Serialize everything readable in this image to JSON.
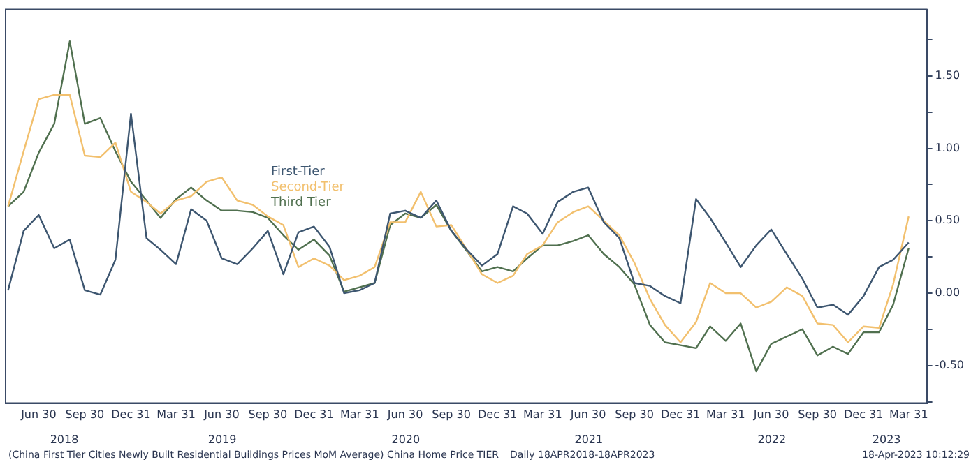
{
  "chart_data": {
    "type": "line",
    "x": [
      "2018-04-30",
      "2018-05-31",
      "2018-06-30",
      "2018-07-31",
      "2018-08-31",
      "2018-09-30",
      "2018-10-31",
      "2018-11-30",
      "2018-12-31",
      "2019-01-31",
      "2019-02-28",
      "2019-03-31",
      "2019-04-30",
      "2019-05-31",
      "2019-06-30",
      "2019-07-31",
      "2019-08-31",
      "2019-09-30",
      "2019-10-31",
      "2019-11-30",
      "2019-12-31",
      "2020-01-31",
      "2020-02-29",
      "2020-03-31",
      "2020-04-30",
      "2020-05-31",
      "2020-06-30",
      "2020-07-31",
      "2020-08-31",
      "2020-09-30",
      "2020-10-31",
      "2020-11-30",
      "2020-12-31",
      "2021-01-31",
      "2021-02-28",
      "2021-03-31",
      "2021-04-30",
      "2021-05-31",
      "2021-06-30",
      "2021-07-31",
      "2021-08-31",
      "2021-09-30",
      "2021-10-31",
      "2021-11-30",
      "2021-12-31",
      "2022-01-31",
      "2022-02-28",
      "2022-03-31",
      "2022-04-30",
      "2022-05-31",
      "2022-06-30",
      "2022-07-31",
      "2022-08-31",
      "2022-09-30",
      "2022-10-31",
      "2022-11-30",
      "2022-12-31",
      "2023-01-31",
      "2023-02-28",
      "2023-03-31"
    ],
    "series": [
      {
        "name": "First-Tier",
        "color": "#3d5670",
        "values": [
          0.02,
          0.43,
          0.54,
          0.31,
          0.37,
          0.02,
          -0.01,
          0.23,
          1.24,
          0.38,
          0.3,
          0.2,
          0.58,
          0.5,
          0.24,
          0.2,
          0.31,
          0.43,
          0.13,
          0.42,
          0.46,
          0.32,
          0.0,
          0.02,
          0.07,
          0.55,
          0.57,
          0.52,
          0.64,
          0.43,
          0.3,
          0.19,
          0.27,
          0.6,
          0.55,
          0.41,
          0.63,
          0.7,
          0.73,
          0.49,
          0.38,
          0.07,
          0.05,
          -0.02,
          -0.07,
          0.65,
          0.52,
          0.35,
          0.18,
          0.33,
          0.44,
          0.27,
          0.1,
          -0.1,
          -0.08,
          -0.15,
          -0.02,
          0.18,
          0.23,
          0.35
        ]
      },
      {
        "name": "Second-Tier",
        "color": "#f2c06e",
        "values": [
          0.6,
          0.98,
          1.34,
          1.37,
          1.37,
          0.95,
          0.94,
          1.04,
          0.7,
          0.63,
          0.55,
          0.64,
          0.67,
          0.77,
          0.8,
          0.64,
          0.61,
          0.53,
          0.47,
          0.18,
          0.24,
          0.19,
          0.09,
          0.12,
          0.18,
          0.49,
          0.49,
          0.7,
          0.46,
          0.47,
          0.3,
          0.13,
          0.07,
          0.12,
          0.27,
          0.33,
          0.49,
          0.56,
          0.6,
          0.5,
          0.4,
          0.21,
          -0.04,
          -0.22,
          -0.34,
          -0.2,
          0.07,
          0.0,
          0.0,
          -0.1,
          -0.06,
          0.04,
          -0.02,
          -0.21,
          -0.22,
          -0.34,
          -0.23,
          -0.24,
          0.06,
          0.53
        ]
      },
      {
        "name": "Third Tier",
        "color": "#50704f",
        "values": [
          0.6,
          0.7,
          0.97,
          1.17,
          1.74,
          1.17,
          1.21,
          0.98,
          0.77,
          0.64,
          0.52,
          0.65,
          0.73,
          0.64,
          0.57,
          0.57,
          0.56,
          0.52,
          0.4,
          0.3,
          0.37,
          0.26,
          0.01,
          0.04,
          0.07,
          0.47,
          0.55,
          0.52,
          0.61,
          0.43,
          0.29,
          0.15,
          0.18,
          0.15,
          0.24,
          0.33,
          0.33,
          0.36,
          0.4,
          0.27,
          0.18,
          0.06,
          -0.22,
          -0.34,
          -0.36,
          -0.38,
          -0.23,
          -0.33,
          -0.21,
          -0.54,
          -0.35,
          -0.3,
          -0.25,
          -0.43,
          -0.37,
          -0.42,
          -0.27,
          -0.27,
          -0.08,
          0.31
        ]
      }
    ],
    "xlim": [
      "2018-04-25",
      "2023-05-06"
    ],
    "x2lim": [
      "2018-04-25",
      "2023-05-06"
    ],
    "xticks": [
      {
        "value": "2018-06-30",
        "label": "Jun 30"
      },
      {
        "value": "2018-09-30",
        "label": "Sep 30"
      },
      {
        "value": "2018-12-31",
        "label": "Dec 31"
      },
      {
        "value": "2019-03-31",
        "label": "Mar 31"
      },
      {
        "value": "2019-06-30",
        "label": "Jun 30"
      },
      {
        "value": "2019-09-30",
        "label": "Sep 30"
      },
      {
        "value": "2019-12-31",
        "label": "Dec 31"
      },
      {
        "value": "2020-03-31",
        "label": "Mar 31"
      },
      {
        "value": "2020-06-30",
        "label": "Jun 30"
      },
      {
        "value": "2020-09-30",
        "label": "Sep 30"
      },
      {
        "value": "2020-12-31",
        "label": "Dec 31"
      },
      {
        "value": "2021-03-31",
        "label": "Mar 31"
      },
      {
        "value": "2021-06-30",
        "label": "Jun 30"
      },
      {
        "value": "2021-09-30",
        "label": "Sep 30"
      },
      {
        "value": "2021-12-31",
        "label": "Dec 31"
      },
      {
        "value": "2022-03-31",
        "label": "Mar 31"
      },
      {
        "value": "2022-06-30",
        "label": "Jun 30"
      },
      {
        "value": "2022-09-30",
        "label": "Sep 30"
      },
      {
        "value": "2022-12-31",
        "label": "Dec 31"
      },
      {
        "value": "2023-03-31",
        "label": "Mar 31"
      }
    ],
    "x2ticks": [
      {
        "value": "2018-08-20",
        "label": "2018"
      },
      {
        "value": "2019-07-01",
        "label": "2019"
      },
      {
        "value": "2020-07-01",
        "label": "2020"
      },
      {
        "value": "2021-07-01",
        "label": "2021"
      },
      {
        "value": "2022-07-01",
        "label": "2022"
      },
      {
        "value": "2023-02-15",
        "label": "2023"
      }
    ],
    "ylim": [
      -0.76,
      1.96
    ],
    "yticks": [
      {
        "value": -0.75,
        "label": null
      },
      {
        "value": -0.5,
        "label": "-0.50"
      },
      {
        "value": -0.25,
        "label": null
      },
      {
        "value": 0,
        "label": "0.00"
      },
      {
        "value": 0.25,
        "label": null
      },
      {
        "value": 0.5,
        "label": "0.50"
      },
      {
        "value": 0.75,
        "label": null
      },
      {
        "value": 1,
        "label": "1.00"
      },
      {
        "value": 1.25,
        "label": null
      },
      {
        "value": 1.5,
        "label": "1.50"
      },
      {
        "value": 1.75,
        "label": null
      }
    ],
    "grid": false,
    "legend": "top left",
    "line_style": "solid",
    "marker": "none",
    "annotations": [
      "(China First Tier Cities Newly Built Residential Buildings Prices MoM Average) China Home Price TIER",
      "Daily 18APR2018-18APR2023",
      "18-Apr-2023 10:12:29"
    ]
  }
}
